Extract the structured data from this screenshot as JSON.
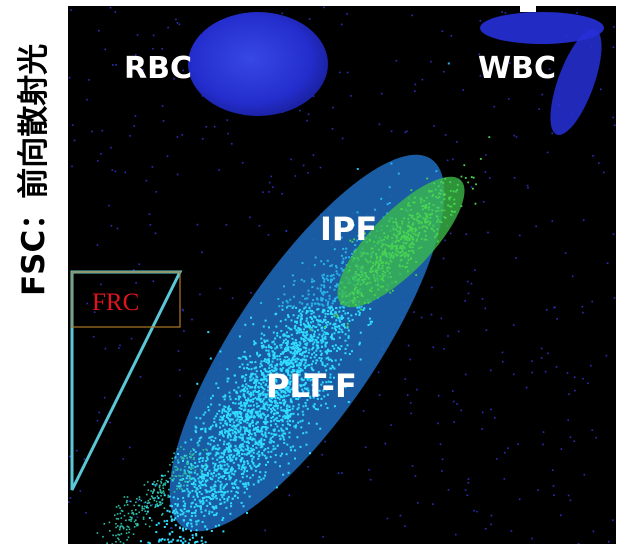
{
  "y_axis_label": "FSC：前向散射光",
  "clusters": {
    "rbc": "RBC",
    "wbc": "WBC",
    "ipf": "IPF",
    "plt_f": "PLT-F",
    "frc": "FRC"
  },
  "colors": {
    "background": "#000000",
    "rbc": "#2630d8",
    "wbc": "#2630d8",
    "plt_f_region": "#1e78c8",
    "plt_f_points": "#2ad0f5",
    "ipf": "#3cbd4a",
    "frc_outline": "#5bc8d8",
    "frc_box": "#b07a2a",
    "frc_text": "#e0141e"
  }
}
